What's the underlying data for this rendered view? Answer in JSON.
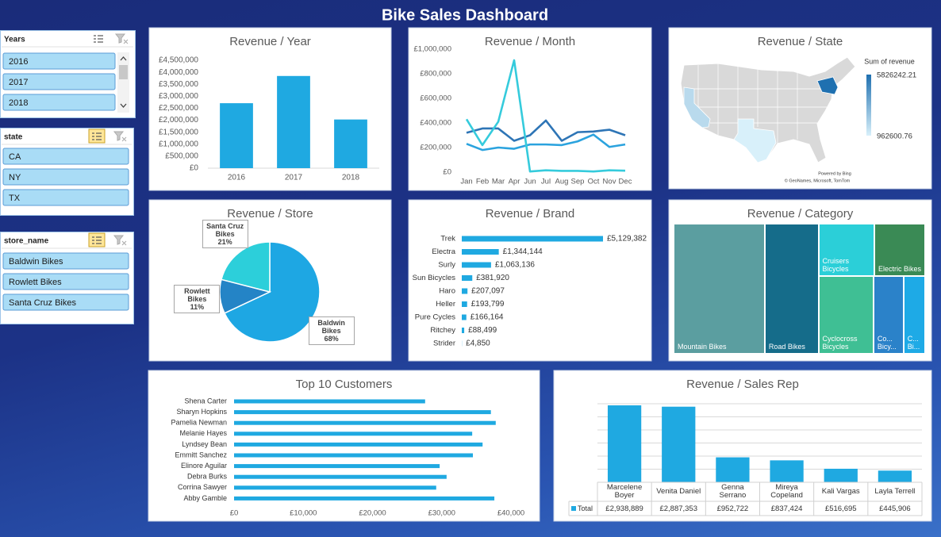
{
  "title": "Bike Sales Dashboard",
  "slicers": [
    {
      "title": "Years",
      "items": [
        "2016",
        "2017",
        "2018"
      ]
    },
    {
      "title": "state",
      "items": [
        "CA",
        "NY",
        "TX"
      ]
    },
    {
      "title": "store_name",
      "items": [
        "Baldwin Bikes",
        "Rowlett Bikes",
        "Santa Cruz Bikes"
      ]
    }
  ],
  "chart_data": [
    {
      "type": "bar",
      "title": "Revenue / Year",
      "categories": [
        "2016",
        "2017",
        "2018"
      ],
      "values": [
        2710000,
        3845000,
        2030000
      ],
      "color": "#1fa9e1",
      "ylim": [
        0,
        4500000
      ],
      "yticks": [
        {
          "value": 0,
          "label": "£0"
        },
        {
          "value": 500000,
          "label": "£500,000"
        },
        {
          "value": 1000000,
          "label": "£1,000,000"
        },
        {
          "value": 1500000,
          "label": "£1,500,000"
        },
        {
          "value": 2000000,
          "label": "£2,000,000"
        },
        {
          "value": 2500000,
          "label": "£2,500,000"
        },
        {
          "value": 3000000,
          "label": "£3,000,000"
        },
        {
          "value": 3500000,
          "label": "£3,500,000"
        },
        {
          "value": 4000000,
          "label": "£4,000,000"
        },
        {
          "value": 4500000,
          "label": "£4,500,000"
        }
      ],
      "grid": false
    },
    {
      "type": "line",
      "title": "Revenue / Month",
      "categories": [
        "Jan",
        "Feb",
        "Mar",
        "Apr",
        "Jun",
        "Jul",
        "Aug",
        "Sep",
        "Oct",
        "Nov",
        "Dec"
      ],
      "series": [
        {
          "color": "#2e75b6",
          "values": [
            320000,
            355000,
            355000,
            255000,
            300000,
            420000,
            255000,
            325000,
            330000,
            345000,
            300000
          ]
        },
        {
          "color": "#2ba3de",
          "values": [
            230000,
            180000,
            200000,
            190000,
            225000,
            225000,
            220000,
            250000,
            305000,
            205000,
            225000
          ]
        },
        {
          "color": "#35cbdc",
          "values": [
            430000,
            220000,
            410000,
            910000,
            5000,
            15000,
            10000,
            10000,
            5000,
            15000,
            12000
          ]
        }
      ],
      "ylim": [
        0,
        1000000
      ],
      "yticks": [
        {
          "value": 0,
          "label": "£0"
        },
        {
          "value": 200000,
          "label": "£200,000"
        },
        {
          "value": 400000,
          "label": "£400,000"
        },
        {
          "value": 600000,
          "label": "£600,000"
        },
        {
          "value": 800000,
          "label": "£800,000"
        },
        {
          "value": 1000000,
          "label": "£1,000,000"
        }
      ],
      "grid": false
    },
    {
      "type": "map",
      "title": "Revenue / State",
      "values": [
        1790000,
        5826242.21,
        962600.76
      ],
      "legend_title": "Sum of revenue",
      "colorbar": {
        "max": 5826242.21,
        "min": 962600.76,
        "colors": [
          "#1f70b0",
          "#d8f0fa"
        ]
      },
      "credits": [
        "Powered by Bing",
        "© GeoNames, Microsoft, TomTom"
      ]
    },
    {
      "type": "pie",
      "title": "Revenue / Store",
      "categories": [
        "Baldwin Bikes",
        "Rowlett Bikes",
        "Santa Cruz Bikes"
      ],
      "values": [
        68,
        11,
        21
      ],
      "value_labels": [
        "68%",
        "11%",
        "21%"
      ],
      "colors": [
        "#1ea7e3",
        "#2484c6",
        "#2ccfda"
      ]
    },
    {
      "type": "barh",
      "title": "Revenue / Brand",
      "categories": [
        "Trek",
        "Electra",
        "Surly",
        "Sun Bicycles",
        "Haro",
        "Heller",
        "Pure Cycles",
        "Ritchey",
        "Strider"
      ],
      "values": [
        5129382,
        1344144,
        1063136,
        381920,
        207097,
        193799,
        166164,
        88499,
        4850
      ],
      "value_labels": [
        "£5,129,382",
        "£1,344,144",
        "£1,063,136",
        "£381,920",
        "£207,097",
        "£193,799",
        "£166,164",
        "£88,499",
        "£4,850"
      ],
      "color": "#1fa9e1"
    },
    {
      "type": "treemap",
      "title": "Revenue / Category",
      "categories": [
        "Mountain Bikes",
        "Road Bikes",
        "Cruisers Bicycles",
        "Electric Bikes",
        "Cyclocross Bicycles",
        "Co... Bicy...",
        "C... Bi..."
      ],
      "values": [
        3110000,
        1830000,
        770000,
        700000,
        1120000,
        610000,
        440000
      ],
      "colors": [
        "#5b9ea0",
        "#156c8a",
        "#2bcfd8",
        "#3a8a55",
        "#3fbf94",
        "#2b82c9",
        "#1eaae6"
      ]
    },
    {
      "type": "barh",
      "title": "Top 10 Customers",
      "categories": [
        "Shena Carter",
        "Sharyn Hopkins",
        "Pamelia Newman",
        "Melanie Hayes",
        "Lyndsey Bean",
        "Emmitt Sanchez",
        "Elinore Aguilar",
        "Debra Burks",
        "Corrina Sawyer",
        "Abby Gamble"
      ],
      "values": [
        27600,
        37100,
        37800,
        34400,
        35900,
        34500,
        29700,
        30700,
        29200,
        37600
      ],
      "color": "#1fa9e1",
      "xlim": [
        0,
        40000
      ],
      "xticks": [
        {
          "value": 0,
          "label": "£0"
        },
        {
          "value": 10000,
          "label": "£10,000"
        },
        {
          "value": 20000,
          "label": "£20,000"
        },
        {
          "value": 30000,
          "label": "£30,000"
        },
        {
          "value": 40000,
          "label": "£40,000"
        }
      ]
    },
    {
      "type": "bar",
      "title": "Revenue / Sales Rep",
      "categories": [
        "Marcelene Boyer",
        "Venita Daniel",
        "Genna Serrano",
        "Mireya Copeland",
        "Kali Vargas",
        "Layla Terrell"
      ],
      "series": [
        {
          "name": "Total",
          "color": "#1fa9e1",
          "values": [
            2938889,
            2887353,
            952722,
            837424,
            516695,
            445906
          ],
          "value_labels": [
            "£2,938,889",
            "£2,887,353",
            "£952,722",
            "£837,424",
            "£516,695",
            "£445,906"
          ]
        }
      ],
      "ylim": [
        0,
        3000000
      ],
      "yticks": [
        0,
        500000,
        1000000,
        1500000,
        2000000,
        2500000,
        3000000
      ],
      "grid": true,
      "ytick_labels": false,
      "data_table": true
    }
  ]
}
